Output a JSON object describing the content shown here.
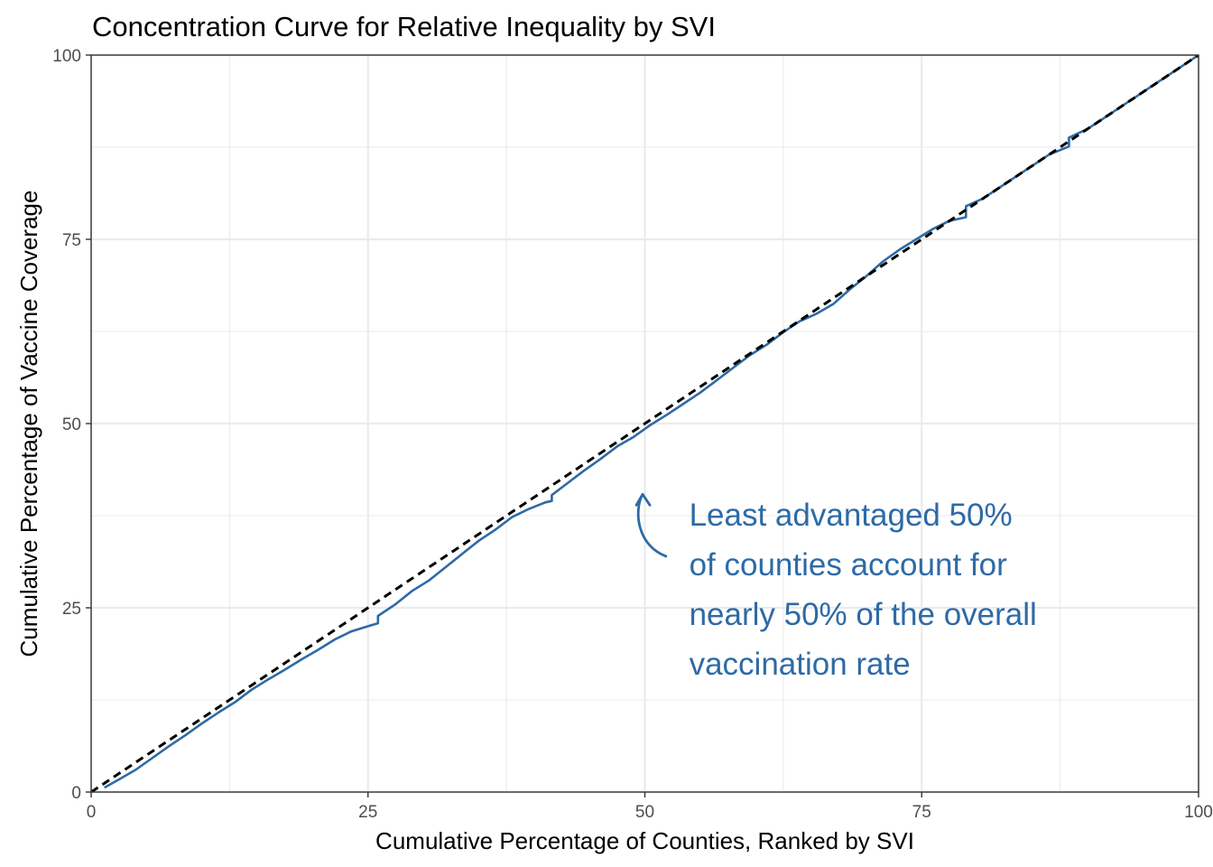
{
  "chart_data": {
    "type": "line",
    "title": "Concentration Curve for Relative Inequality by SVI",
    "xlabel": "Cumulative Percentage of Counties, Ranked by SVI",
    "ylabel": "Cumulative Percentage of Vaccine Coverage",
    "xlim": [
      0,
      100
    ],
    "ylim": [
      0,
      100
    ],
    "x_ticks": [
      "0",
      "25",
      "50",
      "75",
      "100"
    ],
    "y_ticks": [
      "0",
      "25",
      "50",
      "75",
      "100"
    ],
    "grid": true,
    "colors": {
      "curve": "#2e6aa6",
      "equality": "#000000",
      "grid": "#ebebeb",
      "annotation": "#2e6aa6"
    },
    "series": [
      {
        "style": "solid",
        "x": [
          1.2,
          2.5,
          4,
          5.5,
          7,
          8.5,
          10,
          11.5,
          13,
          14.5,
          16,
          17.5,
          19,
          20.5,
          22,
          23.5,
          25,
          25.9,
          25.9,
          27.5,
          29,
          30.5,
          32,
          33.5,
          35,
          36.5,
          38,
          39.5,
          41,
          41.6,
          41.6,
          43,
          44.5,
          46,
          47.5,
          49,
          50.5,
          52,
          53.5,
          55,
          56.5,
          58,
          59.5,
          61,
          62.5,
          64,
          65.5,
          67,
          68.5,
          70,
          71.5,
          73,
          74.5,
          76,
          77.5,
          79,
          79,
          80.5,
          82,
          83.5,
          85,
          86.5,
          88.3,
          88.3,
          90,
          91.5,
          93,
          94.5,
          96,
          97.5,
          100
        ],
        "y": [
          0.6,
          1.7,
          3,
          4.6,
          6.2,
          7.7,
          9.3,
          10.8,
          12.2,
          13.9,
          15.3,
          16.6,
          18,
          19.3,
          20.7,
          21.8,
          22.5,
          22.9,
          23.9,
          25.5,
          27.3,
          28.7,
          30.5,
          32.3,
          34.1,
          35.6,
          37.3,
          38.4,
          39.3,
          39.5,
          40.3,
          41.9,
          43.6,
          45.2,
          46.9,
          48.2,
          49.8,
          51.2,
          52.7,
          54.2,
          55.9,
          57.6,
          59.3,
          60.7,
          62.4,
          63.9,
          64.9,
          66.2,
          68.2,
          70,
          72,
          73.6,
          75,
          76.4,
          77.5,
          78,
          79.5,
          80.5,
          82,
          83.5,
          85,
          86.5,
          87.6,
          88.8,
          90,
          91.5,
          93,
          94.5,
          96,
          97.5,
          100
        ]
      },
      {
        "style": "dashed",
        "x": [
          0,
          100
        ],
        "y": [
          0,
          100
        ]
      }
    ],
    "annotation": {
      "lines": [
        "Least advantaged 50%",
        "of counties account for",
        "nearly 50% of the overall",
        "vaccination rate"
      ],
      "arrow_from": [
        51.9,
        32
      ],
      "arrow_to": [
        49.8,
        40.4
      ]
    }
  }
}
